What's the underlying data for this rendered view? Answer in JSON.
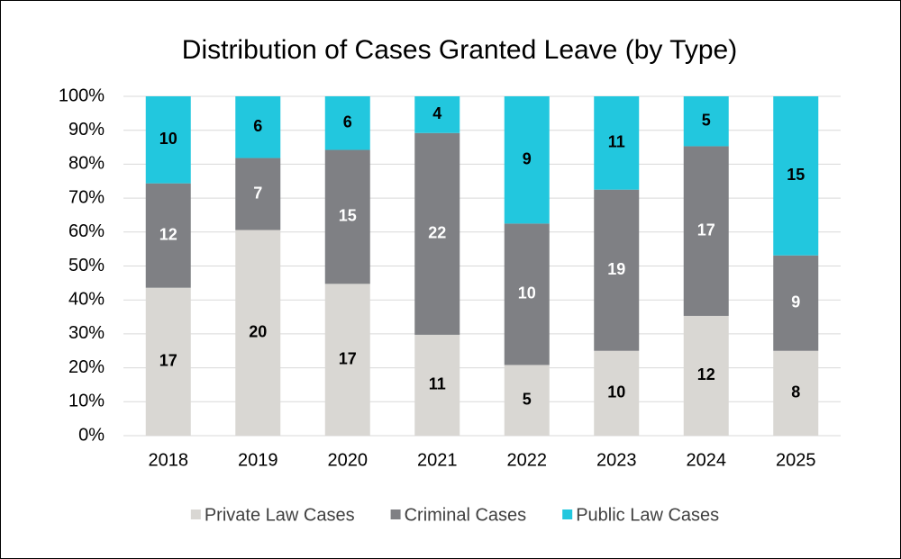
{
  "chart_data": {
    "type": "bar",
    "stacking": "percent",
    "title": "Distribution of Cases Granted Leave (by Type)",
    "categories": [
      "2018",
      "2019",
      "2020",
      "2021",
      "2022",
      "2023",
      "2024",
      "2025"
    ],
    "series": [
      {
        "name": "Private Law Cases",
        "color": "#d9d7d3",
        "label_color": "#000000",
        "values": [
          17,
          20,
          17,
          11,
          5,
          10,
          12,
          8
        ]
      },
      {
        "name": "Criminal Cases",
        "color": "#7f8084",
        "label_color": "#ffffff",
        "values": [
          12,
          7,
          15,
          22,
          10,
          19,
          17,
          9
        ]
      },
      {
        "name": "Public Law Cases",
        "color": "#22c7de",
        "label_color": "#000000",
        "values": [
          10,
          6,
          6,
          4,
          9,
          11,
          5,
          15
        ]
      }
    ],
    "ylim": [
      0,
      100
    ],
    "yticks": [
      {
        "value": 0,
        "label": "0%"
      },
      {
        "value": 10,
        "label": "10%"
      },
      {
        "value": 20,
        "label": "20%"
      },
      {
        "value": 30,
        "label": "30%"
      },
      {
        "value": 40,
        "label": "40%"
      },
      {
        "value": 50,
        "label": "50%"
      },
      {
        "value": 60,
        "label": "60%"
      },
      {
        "value": 70,
        "label": "70%"
      },
      {
        "value": 80,
        "label": "80%"
      },
      {
        "value": 90,
        "label": "90%"
      },
      {
        "value": 100,
        "label": "100%"
      }
    ],
    "grid": true,
    "legend": "bottom"
  }
}
